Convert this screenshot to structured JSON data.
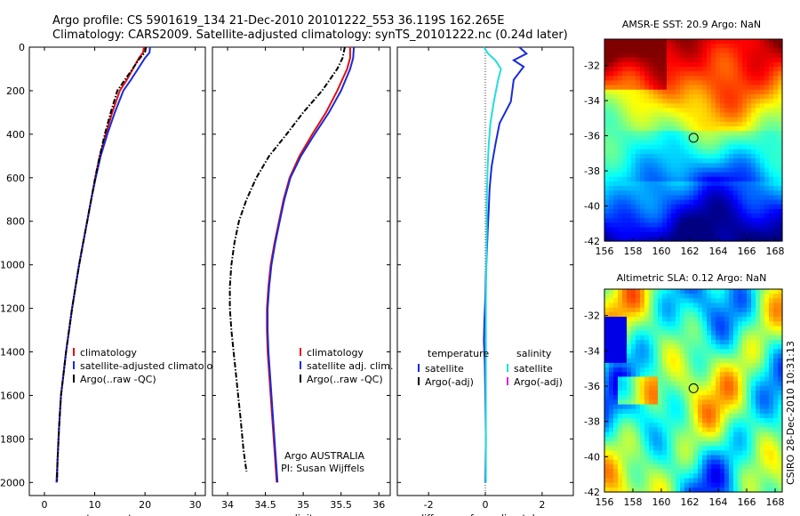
{
  "header": {
    "line1": "Argo profile: CS 5901619_134 21-Dec-2010 20101222_553 36.119S 162.265E",
    "line2": "Climatology: CARS2009. Satellite-adjusted climatology: synTS_20101222.nc (0.24d later)"
  },
  "side_stamp": "CSIRO 28-Dec-2010 10:31:13",
  "colors": {
    "climatology": "#e01010",
    "satellite": "#1a2adb",
    "argo": "#000000",
    "salinity_satellite": "#22dddd",
    "salinity_argo_adj": "#e020e0"
  },
  "chart_data": [
    {
      "type": "line",
      "xlabel": "temperature",
      "ylabel": "",
      "xlim": [
        -3,
        32
      ],
      "ylim": [
        2060,
        0
      ],
      "xticks": [
        0,
        10,
        20,
        30
      ],
      "yticks": [
        0,
        200,
        400,
        600,
        800,
        1000,
        1200,
        1400,
        1600,
        1800,
        2000
      ],
      "legend": [
        "climatology",
        "satellite-adjusted climatology",
        "Argo(..raw -QC)"
      ],
      "legend_placement": "lower-center",
      "series": [
        {
          "name": "climatology",
          "style": "solid",
          "color_key": "climatology",
          "x": [
            19.8,
            19.6,
            18.8,
            17.6,
            16.4,
            15.0,
            13.5,
            12.2,
            11.0,
            10.1,
            9.3,
            8.5,
            7.7,
            6.9,
            6.2,
            5.5,
            4.9,
            4.3,
            3.8,
            3.3,
            2.9,
            2.6,
            2.5
          ],
          "y": [
            0,
            25,
            50,
            100,
            150,
            200,
            300,
            400,
            500,
            600,
            700,
            800,
            900,
            1000,
            1100,
            1200,
            1300,
            1400,
            1500,
            1600,
            1750,
            1900,
            2000
          ]
        },
        {
          "name": "satellite-adjusted climatology",
          "style": "solid",
          "color_key": "satellite",
          "x": [
            21.0,
            20.9,
            20.0,
            18.6,
            17.2,
            15.7,
            14.0,
            12.5,
            11.2,
            10.2,
            9.3,
            8.5,
            7.7,
            6.9,
            6.2,
            5.5,
            4.9,
            4.3,
            3.8,
            3.3,
            2.9,
            2.6,
            2.4
          ],
          "y": [
            0,
            25,
            50,
            100,
            150,
            200,
            300,
            400,
            500,
            600,
            700,
            800,
            900,
            1000,
            1100,
            1200,
            1300,
            1400,
            1500,
            1600,
            1750,
            1900,
            2000
          ]
        },
        {
          "name": "Argo(..raw -QC)",
          "style": "dashdot",
          "color_key": "argo",
          "x": [
            20.2,
            20.0,
            19.0,
            17.5,
            16.0,
            14.5,
            13.2,
            12.0,
            11.0,
            10.1,
            9.3,
            8.5,
            7.7,
            6.9,
            6.2,
            5.5,
            4.9,
            4.3,
            3.8,
            3.3,
            2.9,
            2.6,
            2.5
          ],
          "y": [
            0,
            25,
            50,
            100,
            150,
            200,
            300,
            400,
            500,
            600,
            700,
            800,
            900,
            1000,
            1100,
            1200,
            1300,
            1400,
            1500,
            1600,
            1750,
            1900,
            2000
          ]
        }
      ]
    },
    {
      "type": "line",
      "xlabel": "salinity",
      "xlim": [
        33.8,
        36.15
      ],
      "ylim": [
        2060,
        0
      ],
      "xticks": [
        34,
        34.5,
        35,
        35.5,
        36
      ],
      "xticklabels": [
        "34",
        "34.5",
        "35",
        "35.5",
        "36"
      ],
      "legend": [
        "climatology",
        "satellite adj. clim.",
        "Argo(..raw -QC)"
      ],
      "legend_placement": "lower-right",
      "annotation": [
        "Argo AUSTRALIA",
        "PI: Susan Wijffels"
      ],
      "series": [
        {
          "name": "climatology",
          "style": "solid",
          "color_key": "climatology",
          "x": [
            35.62,
            35.62,
            35.58,
            35.45,
            35.3,
            35.12,
            34.95,
            34.82,
            34.74,
            34.68,
            34.62,
            34.57,
            34.54,
            34.52,
            34.52,
            34.53,
            34.55,
            34.57,
            34.59,
            34.62,
            34.65
          ],
          "y": [
            0,
            50,
            100,
            200,
            300,
            400,
            500,
            600,
            700,
            800,
            900,
            1000,
            1100,
            1200,
            1300,
            1400,
            1500,
            1600,
            1700,
            1850,
            2000
          ]
        },
        {
          "name": "satellite adj. clim.",
          "style": "solid",
          "color_key": "satellite",
          "x": [
            35.67,
            35.66,
            35.62,
            35.5,
            35.34,
            35.15,
            34.97,
            34.83,
            34.75,
            34.69,
            34.63,
            34.58,
            34.55,
            34.53,
            34.53,
            34.54,
            34.56,
            34.58,
            34.6,
            34.63,
            34.66
          ],
          "y": [
            0,
            50,
            100,
            200,
            300,
            400,
            500,
            600,
            700,
            800,
            900,
            1000,
            1100,
            1200,
            1300,
            1400,
            1500,
            1600,
            1700,
            1850,
            2000
          ]
        },
        {
          "name": "Argo(..raw -QC)",
          "style": "dashdot",
          "color_key": "argo",
          "x": [
            35.55,
            35.52,
            35.45,
            35.25,
            35.0,
            34.78,
            34.55,
            34.38,
            34.25,
            34.15,
            34.09,
            34.05,
            34.03,
            34.03,
            34.05,
            34.08,
            34.11,
            34.14,
            34.17,
            34.21,
            34.25
          ],
          "y": [
            0,
            50,
            100,
            200,
            300,
            400,
            500,
            600,
            700,
            800,
            900,
            1000,
            1100,
            1200,
            1300,
            1400,
            1500,
            1600,
            1700,
            1850,
            1950
          ]
        }
      ]
    },
    {
      "type": "line",
      "xlabel": "difference from climatology",
      "xlim": [
        -3.1,
        3.1
      ],
      "ylim": [
        2060,
        0
      ],
      "xticks": [
        -2,
        0,
        2
      ],
      "legend_groups": [
        {
          "heading": "temperature",
          "items": [
            "satellite",
            "Argo(-adj)"
          ]
        },
        {
          "heading": "salinity",
          "items": [
            "satellite",
            "Argo(-adj)"
          ]
        }
      ],
      "legend_placement": "lower-center",
      "series": [
        {
          "name": "temperature satellite",
          "style": "solid",
          "color_key": "satellite",
          "x": [
            1.2,
            1.45,
            1.0,
            1.35,
            1.0,
            0.9,
            0.5,
            0.35,
            0.22,
            0.15,
            0.12,
            0.08,
            0.05,
            0.02,
            0.0,
            -0.03,
            -0.05,
            -0.02,
            0.0,
            0.02,
            0.0
          ],
          "y": [
            0,
            30,
            60,
            90,
            150,
            250,
            350,
            450,
            550,
            650,
            750,
            850,
            950,
            1050,
            1150,
            1250,
            1350,
            1450,
            1600,
            1800,
            2000
          ]
        },
        {
          "name": "salinity satellite",
          "style": "solid",
          "color_key": "salinity_satellite",
          "x": [
            -0.05,
            0.1,
            0.35,
            0.55,
            0.45,
            0.3,
            0.18,
            0.12,
            0.08,
            0.06,
            0.05,
            0.05,
            0.04,
            0.03,
            0.02,
            0.02,
            0.02,
            0.02,
            0.02,
            0.02,
            0.02
          ],
          "y": [
            0,
            30,
            60,
            100,
            150,
            250,
            350,
            450,
            550,
            650,
            750,
            850,
            950,
            1050,
            1150,
            1250,
            1350,
            1450,
            1600,
            1800,
            2000
          ]
        }
      ]
    },
    {
      "type": "heatmap",
      "title": "AMSR-E SST: 20.9 Argo: NaN",
      "xlim": [
        156,
        168.5
      ],
      "ylim": [
        -42,
        -30.5
      ],
      "xticks": [
        156,
        158,
        160,
        162,
        164,
        166,
        168
      ],
      "yticks": [
        -32,
        -34,
        -36,
        -38,
        -40,
        -42
      ],
      "marker": {
        "lon": 162.265,
        "lat": -36.119
      }
    },
    {
      "type": "heatmap",
      "title": "Altimetric SLA: 0.12 Argo: NaN",
      "xlim": [
        156,
        168.5
      ],
      "ylim": [
        -42,
        -30.5
      ],
      "xticks": [
        156,
        158,
        160,
        162,
        164,
        166,
        168
      ],
      "yticks": [
        -32,
        -34,
        -36,
        -38,
        -40,
        -42
      ],
      "marker": {
        "lon": 162.265,
        "lat": -36.119
      }
    }
  ]
}
